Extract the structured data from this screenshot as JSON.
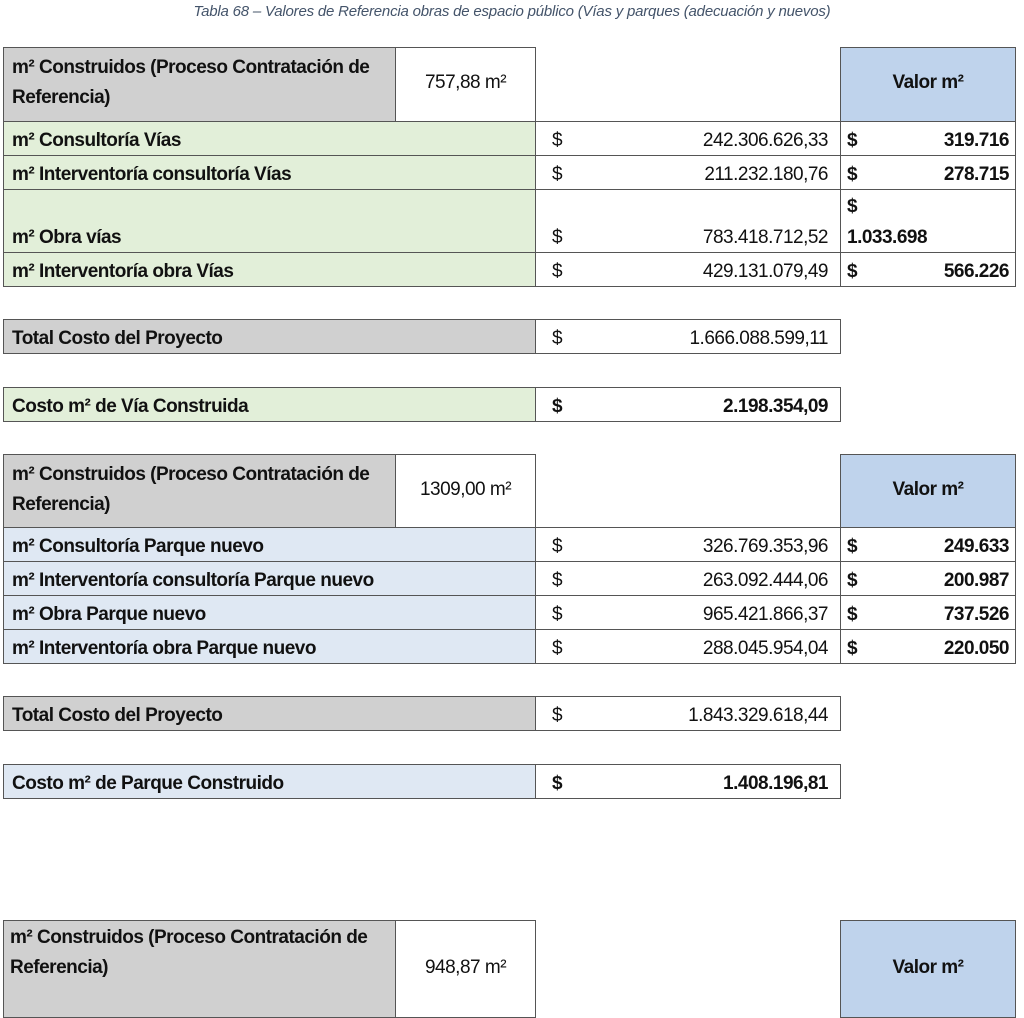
{
  "caption": "Tabla 68 – Valores de Referencia obras de espacio público (Vías y parques (adecuación y nuevos)",
  "currency_symbol": "$",
  "valor_header": "Valor m²",
  "sections": [
    {
      "header_label": "m² Construidos (Proceso Contratación de Referencia)",
      "area": "757,88 m²",
      "row_color": "green",
      "rows": [
        {
          "label": "m² Consultoría Vías",
          "amount": "242.306.626,33",
          "valor": "319.716"
        },
        {
          "label": "m² Interventoría consultoría Vías",
          "amount": "211.232.180,76",
          "valor": "278.715"
        },
        {
          "label": "m² Obra vías",
          "amount": "783.418.712,52",
          "valor": "1.033.698"
        },
        {
          "label": "m² Interventoría obra Vías",
          "amount": "429.131.079,49",
          "valor": "566.226"
        }
      ],
      "total_label": "Total Costo del Proyecto",
      "total_amount": "1.666.088.599,11",
      "cost_label": "Costo m² de Vía Construida",
      "cost_amount": "2.198.354,09"
    },
    {
      "header_label": "m² Construidos (Proceso Contratación de Referencia)",
      "area": "1309,00 m²",
      "row_color": "lblue",
      "rows": [
        {
          "label": "m² Consultoría Parque nuevo",
          "amount": "326.769.353,96",
          "valor": "249.633"
        },
        {
          "label": "m² Interventoría consultoría Parque nuevo",
          "amount": "263.092.444,06",
          "valor": "200.987"
        },
        {
          "label": "m² Obra Parque nuevo",
          "amount": "965.421.866,37",
          "valor": "737.526"
        },
        {
          "label": "m² Interventoría obra Parque nuevo",
          "amount": "288.045.954,04",
          "valor": "220.050"
        }
      ],
      "total_label": "Total Costo del Proyecto",
      "total_amount": "1.843.329.618,44",
      "cost_label": "Costo m² de Parque Construido",
      "cost_amount": "1.408.196,81"
    },
    {
      "header_label": "m² Construidos (Proceso Contratación de Referencia)",
      "area": "948,87 m²"
    }
  ]
}
